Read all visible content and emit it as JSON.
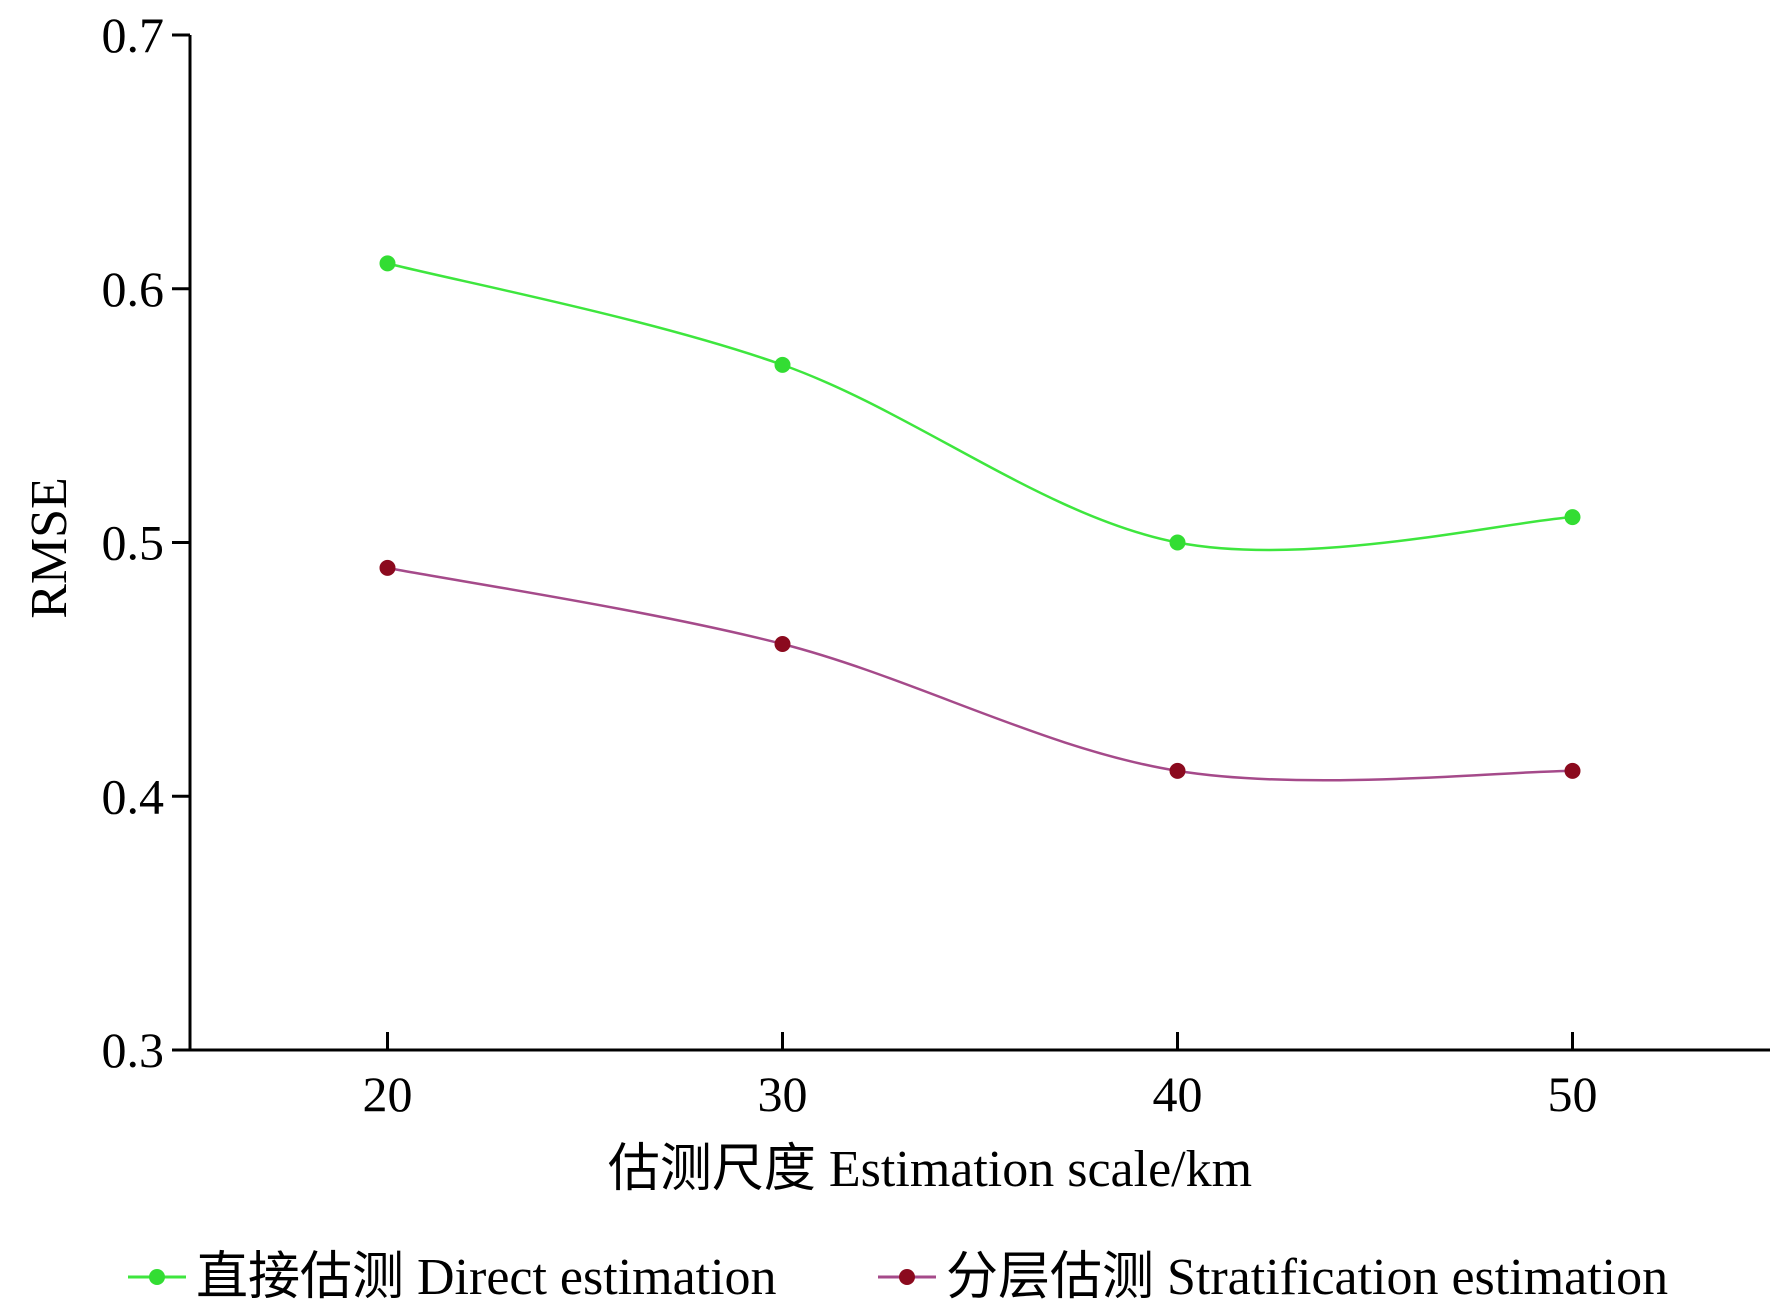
{
  "chart_data": {
    "type": "line",
    "xlabel": "估测尺度 Estimation scale/km",
    "ylabel": "RMSE",
    "x": [
      20,
      30,
      40,
      50
    ],
    "x_ticks": [
      "20",
      "30",
      "40",
      "50"
    ],
    "xlim": [
      15,
      55
    ],
    "ylim": [
      0.3,
      0.7
    ],
    "y_ticks": [
      "0.3",
      "0.4",
      "0.5",
      "0.6",
      "0.7"
    ],
    "grid": false,
    "legend_position": "bottom",
    "series": [
      {
        "name": "直接估测 Direct estimation",
        "values": [
          0.61,
          0.57,
          0.5,
          0.51
        ],
        "line_color": "#3ee63e",
        "marker_color": "#33dd33"
      },
      {
        "name": "分层估测 Stratification estimation",
        "values": [
          0.49,
          0.46,
          0.41,
          0.41
        ],
        "line_color": "#a54a8a",
        "marker_color": "#8b0a1e"
      }
    ]
  }
}
